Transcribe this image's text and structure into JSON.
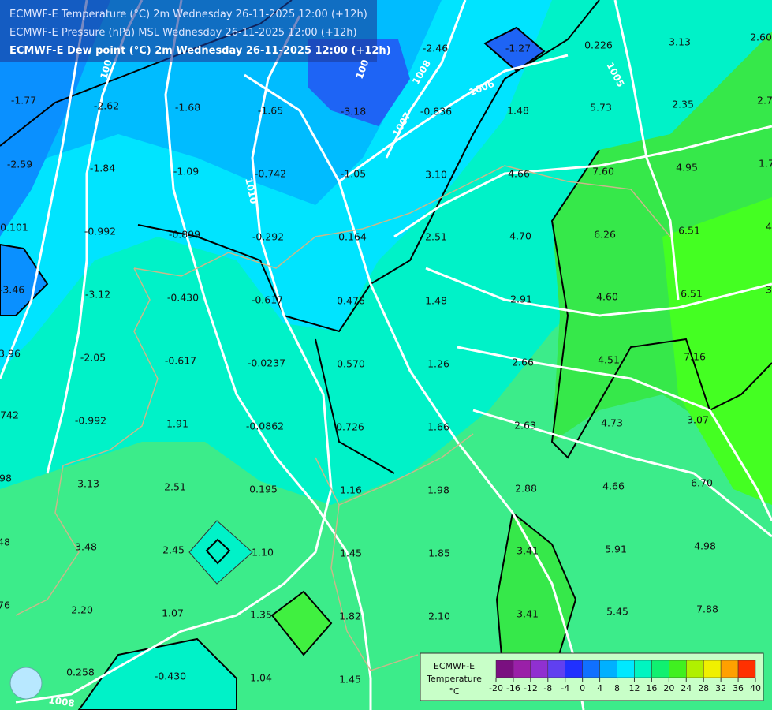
{
  "header": {
    "lines": [
      "ECMWF-E Temperature (°C) 2m Wednesday 26-11-2025 12:00 (+12h)",
      "ECMWF-E Pressure (hPa) MSL Wednesday 26-11-2025 12:00 (+12h)",
      "ECMWF-E Dew point (°C) 2m Wednesday 26-11-2025 12:00 (+12h)"
    ]
  },
  "map": {
    "point_values": [
      "-2.46",
      "-1.27",
      "0.226",
      "3.13",
      "2.60",
      "-1.77",
      "-2.62",
      "-1.68",
      "-1.65",
      "-3.18",
      "-0.836",
      "1.48",
      "5.73",
      "2.35",
      "2.7",
      "-2.59",
      "-1.84",
      "-1.09",
      "-0.742",
      "-1.05",
      "3.10",
      "4.66",
      "7.60",
      "4.95",
      "1.7",
      "0.101",
      "-0.992",
      "-0.899",
      "-0.292",
      "0.164",
      "2.51",
      "4.70",
      "6.26",
      "6.51",
      "4",
      "-3.46",
      "-3.12",
      "-0.430",
      "-0.617",
      "0.476",
      "1.48",
      "2.91",
      "4.60",
      "6.51",
      "3",
      "3.96",
      "-2.05",
      "-0.617",
      "-0.0237",
      "0.570",
      "1.26",
      "2.66",
      "4.51",
      "7.16",
      "742",
      "-0.992",
      "1.91",
      "-0.0862",
      "0.726",
      "1.66",
      "2.63",
      "4.73",
      "3.07",
      "98",
      "3.13",
      "2.51",
      "0.195",
      "1.16",
      "1.98",
      "2.88",
      "4.66",
      "6.70",
      "48",
      "3.48",
      "2.45",
      "1.10",
      "1.45",
      "1.85",
      "3.41",
      "5.91",
      "4.98",
      "76",
      "2.20",
      "1.07",
      "1.35",
      "1.82",
      "2.10",
      "3.41",
      "5.45",
      "7.88",
      "0.258",
      "-0.430",
      "1.04",
      "1.45"
    ],
    "isobar_labels": [
      "100",
      "100",
      "1008",
      "1006",
      "1007",
      "1010",
      "1005",
      "1008"
    ]
  },
  "legend": {
    "title_lines": [
      "ECMWF-E",
      "Temperature",
      "°C"
    ],
    "ticks": [
      -20,
      -16,
      -12,
      -8,
      -4,
      0,
      4,
      8,
      12,
      16,
      20,
      24,
      28,
      32,
      36,
      40
    ],
    "colors": [
      "#7a1080",
      "#9a20a8",
      "#9030d0",
      "#6040f0",
      "#2030ff",
      "#1070ff",
      "#00b0ff",
      "#00e8ff",
      "#00f5c0",
      "#10f070",
      "#40f020",
      "#b0f000",
      "#f0f000",
      "#ffa000",
      "#ff3000"
    ]
  }
}
